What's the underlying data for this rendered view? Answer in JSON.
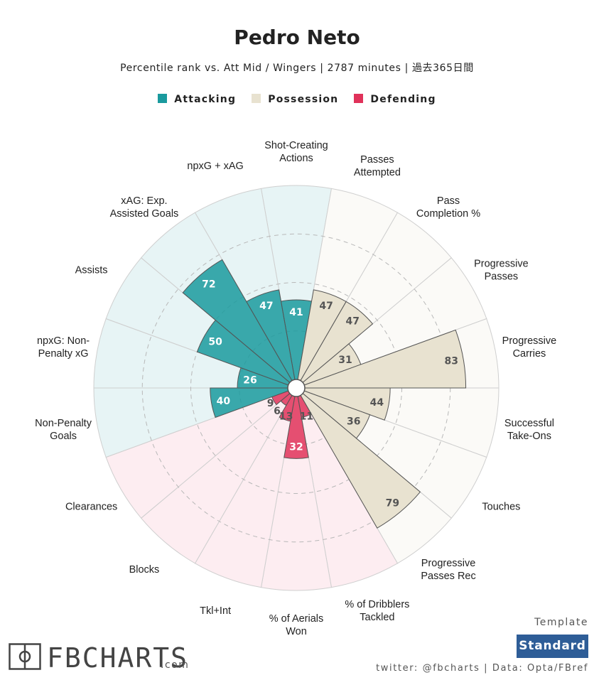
{
  "header": {
    "title": "Pedro Neto",
    "subtitle": "Percentile rank vs. Att Mid / Wingers | 2787 minutes | 過去365日間"
  },
  "legend": [
    {
      "label": "Attacking",
      "color": "#1a9a9e"
    },
    {
      "label": "Possession",
      "color": "#e8e2d0"
    },
    {
      "label": "Defending",
      "color": "#e0325a"
    }
  ],
  "chart_data": {
    "type": "polar-bar",
    "title": "Pedro Neto",
    "rlim": [
      0,
      100
    ],
    "gridlines": [
      25,
      50,
      75
    ],
    "groups": {
      "Attacking": {
        "bar": "#1a9a9e",
        "bg": "#e7f4f5"
      },
      "Possession": {
        "bar": "#e8e2d0",
        "bg": "#fbfaf7"
      },
      "Defending": {
        "bar": "#e0325a",
        "bg": "#fdedf1"
      }
    },
    "metrics": [
      {
        "label": "Shot-Creating\nActions",
        "value": 41,
        "group": "Attacking"
      },
      {
        "label": "Passes\nAttempted",
        "value": 47,
        "group": "Possession"
      },
      {
        "label": "Pass\nCompletion %",
        "value": 47,
        "group": "Possession"
      },
      {
        "label": "Progressive\nPasses",
        "value": 31,
        "group": "Possession"
      },
      {
        "label": "Progressive\nCarries",
        "value": 83,
        "group": "Possession"
      },
      {
        "label": "Successful\nTake-Ons",
        "value": 44,
        "group": "Possession"
      },
      {
        "label": "Touches",
        "value": 36,
        "group": "Possession"
      },
      {
        "label": "Progressive\nPasses Rec",
        "value": 79,
        "group": "Possession"
      },
      {
        "label": "% of Dribblers\nTackled",
        "value": 11,
        "group": "Defending"
      },
      {
        "label": "% of Aerials\nWon",
        "value": 32,
        "group": "Defending"
      },
      {
        "label": "Tkl+Int",
        "value": 13,
        "group": "Defending"
      },
      {
        "label": "Blocks",
        "value": 6,
        "group": "Defending"
      },
      {
        "label": "Clearances",
        "value": 9,
        "group": "Defending"
      },
      {
        "label": "Non-Penalty\nGoals",
        "value": 40,
        "group": "Attacking"
      },
      {
        "label": "npxG: Non-\nPenalty xG",
        "value": 26,
        "group": "Attacking"
      },
      {
        "label": "Assists",
        "value": 50,
        "group": "Attacking"
      },
      {
        "label": "xAG: Exp.\nAssisted Goals",
        "value": 72,
        "group": "Attacking"
      },
      {
        "label": "npxG + xAG",
        "value": 47,
        "group": "Attacking"
      }
    ]
  },
  "footer": {
    "logo_text": "FBCHARTS",
    "logo_suffix": ".com",
    "template_label": "Template",
    "template_value": "Standard",
    "credit": "twitter: @fbcharts | Data: Opta/FBref"
  }
}
